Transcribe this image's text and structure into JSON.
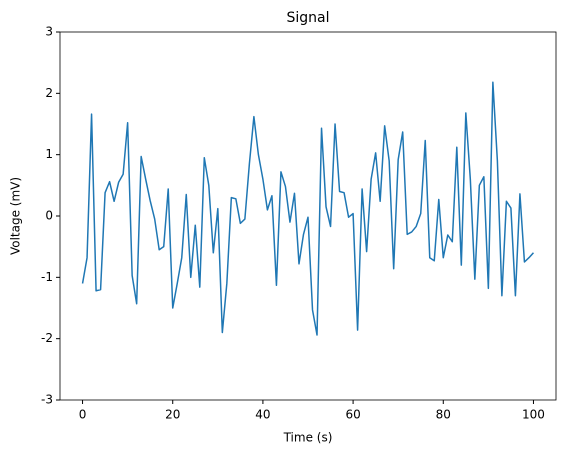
{
  "chart_data": {
    "type": "line",
    "title": "Signal",
    "x_label": "Time (s)",
    "y_label": "Voltage (mV)",
    "x": [
      0,
      1,
      2,
      3,
      4,
      5,
      6,
      7,
      8,
      9,
      10,
      11,
      12,
      13,
      14,
      15,
      16,
      17,
      18,
      19,
      20,
      21,
      22,
      23,
      24,
      25,
      26,
      27,
      28,
      29,
      30,
      31,
      32,
      33,
      34,
      35,
      36,
      37,
      38,
      39,
      40,
      41,
      42,
      43,
      44,
      45,
      46,
      47,
      48,
      49,
      50,
      51,
      52,
      53,
      54,
      55,
      56,
      57,
      58,
      59,
      60,
      61,
      62,
      63,
      64,
      65,
      66,
      67,
      68,
      69,
      70,
      71,
      72,
      73,
      74,
      75,
      76,
      77,
      78,
      79,
      80,
      81,
      82,
      83,
      84,
      85,
      86,
      87,
      88,
      89,
      90,
      91,
      92,
      93,
      94,
      95,
      96,
      97,
      98,
      99,
      100
    ],
    "series": [
      {
        "name": "Signal",
        "color": "#1f77b4",
        "values": [
          -1.1,
          -0.68,
          1.66,
          -1.22,
          -1.2,
          0.38,
          0.56,
          0.24,
          0.55,
          0.68,
          1.52,
          -0.97,
          -1.43,
          0.97,
          0.6,
          0.25,
          -0.05,
          -0.55,
          -0.5,
          0.44,
          -1.5,
          -1.1,
          -0.68,
          0.35,
          -1.0,
          -0.15,
          -1.16,
          0.95,
          0.5,
          -0.6,
          0.12,
          -1.9,
          -1.1,
          0.3,
          0.28,
          -0.12,
          -0.05,
          0.85,
          1.62,
          1.0,
          0.6,
          0.1,
          0.33,
          -1.13,
          0.72,
          0.48,
          -0.1,
          0.37,
          -0.78,
          -0.3,
          -0.02,
          -1.53,
          -1.94,
          1.43,
          0.15,
          -0.17,
          1.5,
          0.4,
          0.38,
          -0.02,
          0.04,
          -1.86,
          0.44,
          -0.58,
          0.6,
          1.03,
          0.24,
          1.47,
          0.9,
          -0.86,
          0.92,
          1.37,
          -0.3,
          -0.26,
          -0.17,
          0.04,
          1.23,
          -0.68,
          -0.73,
          0.27,
          -0.68,
          -0.31,
          -0.42,
          1.12,
          -0.8,
          1.68,
          0.6,
          -1.03,
          0.5,
          0.64,
          -1.18,
          2.18,
          0.9,
          -1.3,
          0.24,
          0.13,
          -1.3,
          0.36,
          -0.75,
          -0.68,
          -0.6
        ]
      }
    ],
    "xlim": [
      -5,
      105
    ],
    "xticks": [
      0,
      20,
      40,
      60,
      80,
      100
    ],
    "ylim": [
      -3,
      3
    ],
    "yticks": [
      -3,
      -2,
      -1,
      0,
      1,
      2,
      3
    ],
    "grid": false
  }
}
